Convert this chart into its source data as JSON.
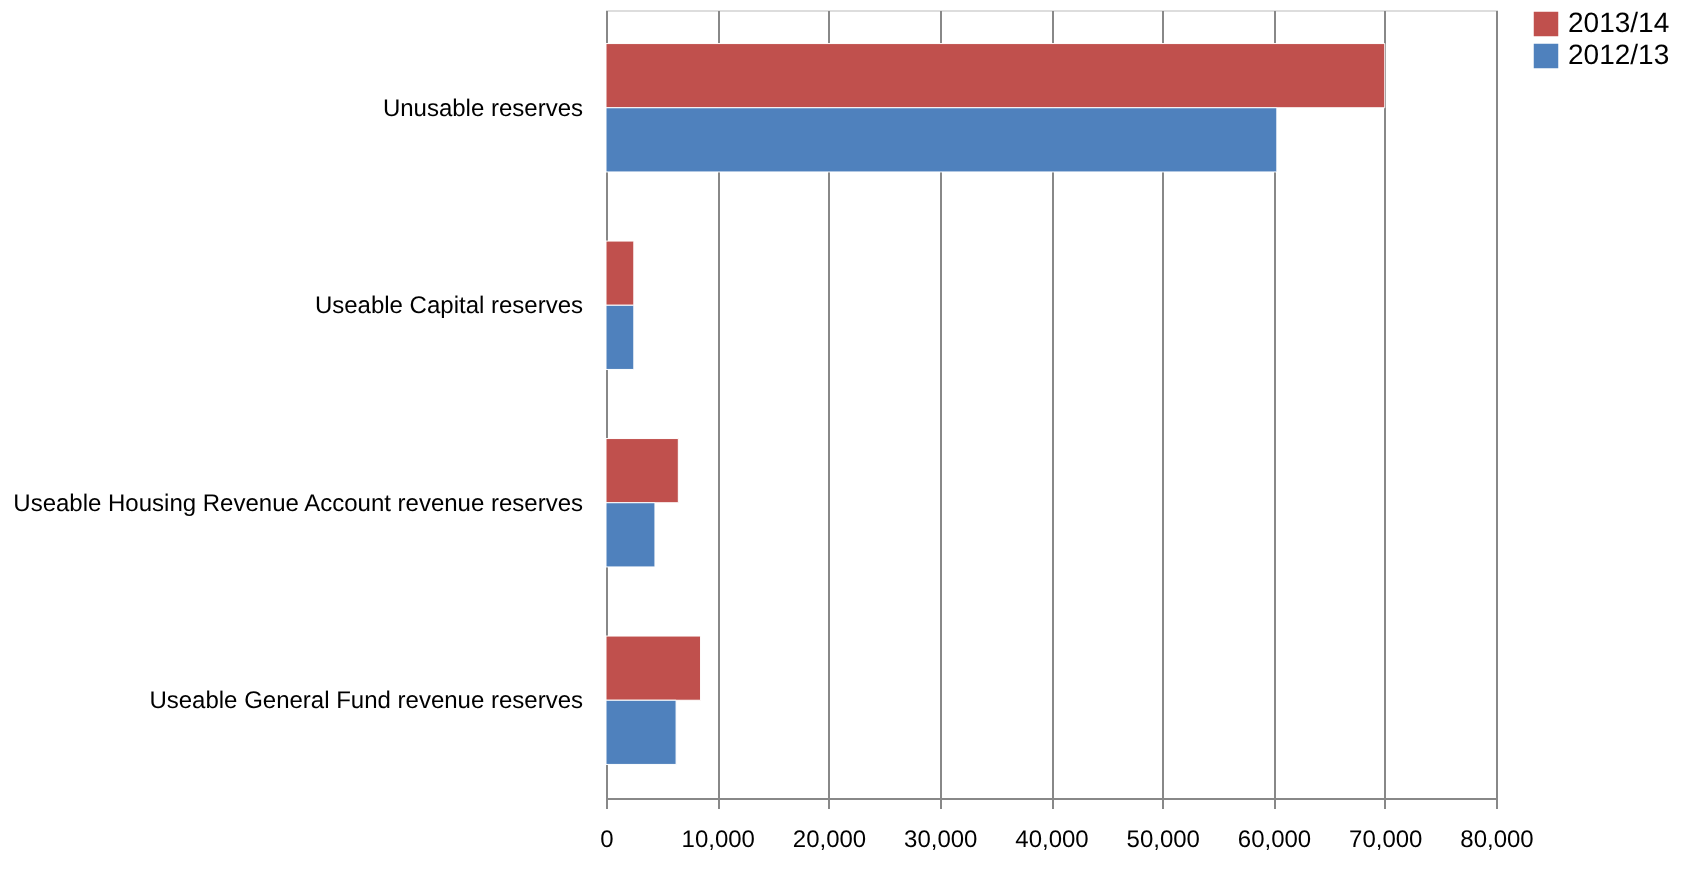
{
  "chart_data": {
    "type": "bar",
    "orientation": "horizontal",
    "categories": [
      "Unusable reserves",
      "Useable Capital reserves",
      "Useable Housing Revenue Account revenue reserves",
      "Useable General Fund revenue reserves"
    ],
    "series": [
      {
        "name": "2013/14",
        "color": "#c0504d",
        "values": [
          70000,
          2500,
          6500,
          8500
        ]
      },
      {
        "name": "2012/13",
        "color": "#4f81bd",
        "values": [
          60300,
          2500,
          4400,
          6300
        ]
      }
    ],
    "xlim": [
      0,
      80000
    ],
    "xticks": [
      {
        "value": 0,
        "label": "0"
      },
      {
        "value": 10000,
        "label": "10,000"
      },
      {
        "value": 20000,
        "label": "20,000"
      },
      {
        "value": 30000,
        "label": "30,000"
      },
      {
        "value": 40000,
        "label": "40,000"
      },
      {
        "value": 50000,
        "label": "50,000"
      },
      {
        "value": 60000,
        "label": "60,000"
      },
      {
        "value": 70000,
        "label": "70,000"
      },
      {
        "value": 80000,
        "label": "80,000"
      }
    ],
    "grid": "x",
    "legend": "right"
  }
}
